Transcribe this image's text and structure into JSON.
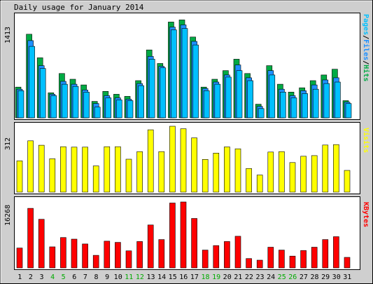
{
  "title": "Daily usage for January 2014",
  "colors": {
    "hits": "#00aa44",
    "files": "#1e90ff",
    "pages": "#00c0ff",
    "visits": "#ffff00",
    "kbytes": "#ff0000",
    "weekday_label": "#000000",
    "weekend_label": "#00aa00",
    "separator": "#000000"
  },
  "legend_top": {
    "pages": "Pages",
    "sep1": "/",
    "files": "Files",
    "sep2": "/",
    "hits": "Hits"
  },
  "legend_visits": "Visits",
  "legend_kbytes": "KBytes",
  "chart_data": [
    {
      "type": "bar",
      "panel": "hits-files-pages",
      "ymax_label": "1413",
      "ylim": [
        0,
        1413
      ],
      "categories": [
        "1",
        "2",
        "3",
        "4",
        "5",
        "6",
        "7",
        "8",
        "9",
        "10",
        "11",
        "12",
        "13",
        "14",
        "15",
        "16",
        "17",
        "18",
        "19",
        "20",
        "21",
        "22",
        "23",
        "24",
        "25",
        "26",
        "27",
        "28",
        "29",
        "30",
        "31"
      ],
      "weekend_days": [
        "4",
        "5",
        "11",
        "12",
        "18",
        "19",
        "25",
        "26"
      ],
      "series": [
        {
          "name": "Hits",
          "values": [
            430,
            1170,
            840,
            350,
            620,
            540,
            460,
            230,
            370,
            330,
            300,
            520,
            950,
            760,
            1340,
            1370,
            1130,
            430,
            540,
            660,
            820,
            620,
            190,
            730,
            470,
            360,
            420,
            520,
            600,
            680,
            240
          ]
        },
        {
          "name": "Files",
          "values": [
            400,
            1080,
            730,
            330,
            510,
            470,
            390,
            200,
            310,
            280,
            260,
            480,
            860,
            720,
            1270,
            1300,
            1070,
            410,
            500,
            600,
            740,
            560,
            160,
            660,
            400,
            310,
            380,
            460,
            530,
            560,
            220
          ]
        },
        {
          "name": "Pages",
          "values": [
            380,
            1000,
            690,
            310,
            470,
            440,
            360,
            150,
            280,
            250,
            240,
            450,
            820,
            700,
            1230,
            1250,
            1020,
            380,
            470,
            570,
            660,
            520,
            130,
            600,
            360,
            280,
            340,
            400,
            480,
            500,
            200
          ]
        }
      ]
    },
    {
      "type": "bar",
      "panel": "visits",
      "ymax_label": "312",
      "ylim": [
        0,
        312
      ],
      "categories": [
        "1",
        "2",
        "3",
        "4",
        "5",
        "6",
        "7",
        "8",
        "9",
        "10",
        "11",
        "12",
        "13",
        "14",
        "15",
        "16",
        "17",
        "18",
        "19",
        "20",
        "21",
        "22",
        "23",
        "24",
        "25",
        "26",
        "27",
        "28",
        "29",
        "30",
        "31"
      ],
      "series": [
        {
          "name": "Visits",
          "values": [
            148,
            243,
            222,
            158,
            215,
            213,
            213,
            124,
            215,
            215,
            156,
            192,
            295,
            192,
            312,
            300,
            257,
            155,
            185,
            214,
            205,
            112,
            81,
            190,
            192,
            140,
            170,
            173,
            223,
            225,
            103
          ]
        }
      ]
    },
    {
      "type": "bar",
      "panel": "kbytes",
      "ymax_label": "16268",
      "ylim": [
        0,
        16268
      ],
      "categories": [
        "1",
        "2",
        "3",
        "4",
        "5",
        "6",
        "7",
        "8",
        "9",
        "10",
        "11",
        "12",
        "13",
        "14",
        "15",
        "16",
        "17",
        "18",
        "19",
        "20",
        "21",
        "22",
        "23",
        "24",
        "25",
        "26",
        "27",
        "28",
        "29",
        "30",
        "31"
      ],
      "series": [
        {
          "name": "KBytes",
          "values": [
            4900,
            14700,
            12000,
            5200,
            7500,
            7100,
            5900,
            3100,
            6600,
            6300,
            4200,
            6500,
            10600,
            7000,
            16000,
            16268,
            12200,
            4400,
            5500,
            6500,
            7800,
            2300,
            1900,
            5100,
            4400,
            2900,
            4300,
            5100,
            7000,
            7700,
            2600
          ]
        }
      ]
    }
  ]
}
